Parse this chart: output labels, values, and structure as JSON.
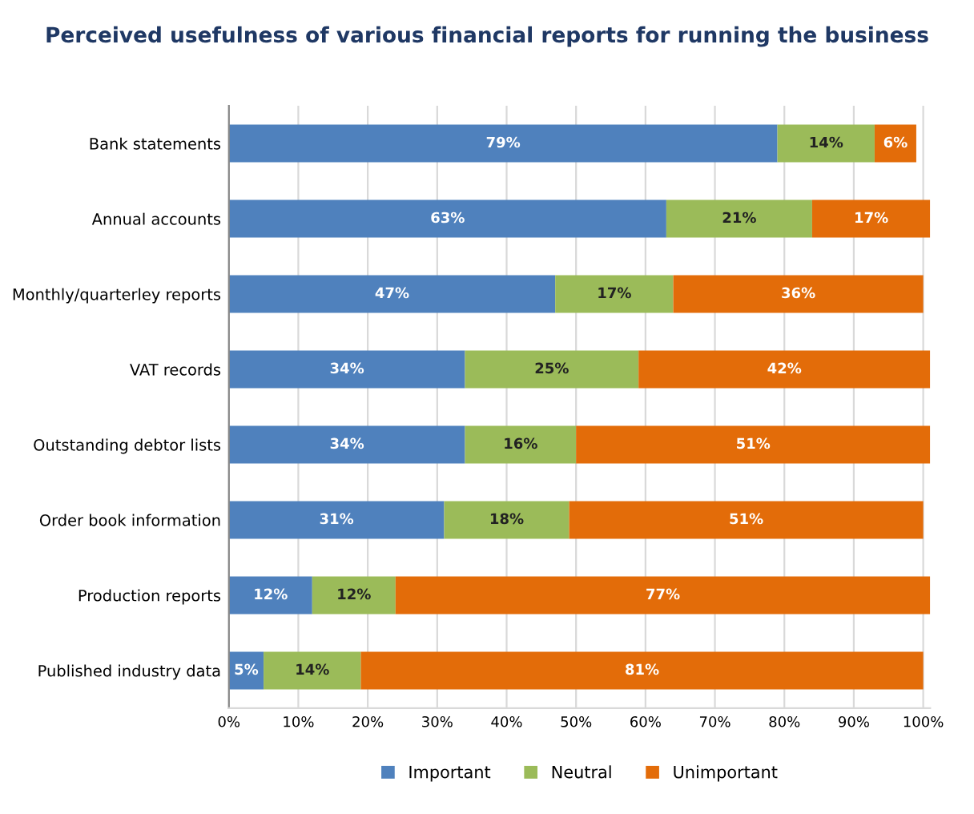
{
  "chart_data": {
    "type": "bar",
    "orientation": "horizontal",
    "stacked": true,
    "title": "Perceived usefulness of various financial reports for running the business",
    "categories": [
      "Bank statements",
      "Annual accounts",
      "Monthly/quarterley reports",
      "VAT records",
      "Outstanding debtor lists",
      "Order book information",
      "Production reports",
      "Published industry data"
    ],
    "series": [
      {
        "name": "Important",
        "color": "#4f81bd",
        "values": [
          79,
          63,
          47,
          34,
          34,
          31,
          12,
          5
        ],
        "value_labels": [
          "79%",
          "63%",
          "47%",
          "34%",
          "34%",
          "31%",
          "12%",
          "5%"
        ]
      },
      {
        "name": "Neutral",
        "color": "#9bbb59",
        "values": [
          14,
          21,
          17,
          25,
          16,
          18,
          12,
          14
        ],
        "value_labels": [
          "14%",
          "21%",
          "17%",
          "25%",
          "16%",
          "18%",
          "12%",
          "14%"
        ]
      },
      {
        "name": "Unimportant",
        "color": "#e36c09",
        "values": [
          6,
          17,
          36,
          42,
          51,
          51,
          77,
          81
        ],
        "value_labels": [
          "6%",
          "17%",
          "36%",
          "42%",
          "51%",
          "51%",
          "77%",
          "81%"
        ]
      }
    ],
    "xlim": [
      0,
      101
    ],
    "xticks": [
      {
        "value": 0,
        "label": "0%"
      },
      {
        "value": 10,
        "label": "10%"
      },
      {
        "value": 20,
        "label": "20%"
      },
      {
        "value": 30,
        "label": "30%"
      },
      {
        "value": 40,
        "label": "40%"
      },
      {
        "value": 50,
        "label": "50%"
      },
      {
        "value": 60,
        "label": "60%"
      },
      {
        "value": 70,
        "label": "70%"
      },
      {
        "value": 80,
        "label": "80%"
      },
      {
        "value": 90,
        "label": "90%"
      },
      {
        "value": 100,
        "label": "100%"
      }
    ],
    "grid": "x",
    "legend": "bottom"
  }
}
